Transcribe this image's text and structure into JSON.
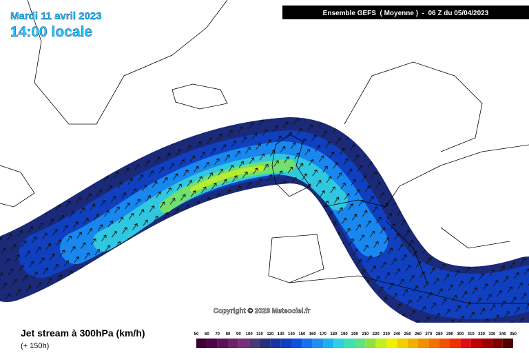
{
  "header": {
    "date": "Mardi 11 avril 2023",
    "time": "14:00 locale",
    "model": "Ensemble GEFS  ( Moyenne )  -  06 Z du 05/04/2023"
  },
  "copyright": "Copyright © 2023 Meteociel.fr",
  "legend": {
    "title": "Jet stream à 300hPa (km/h)",
    "lead": "(+ 150h)",
    "ticks": [
      50,
      60,
      70,
      80,
      90,
      100,
      110,
      120,
      130,
      140,
      150,
      160,
      170,
      180,
      190,
      200,
      210,
      220,
      230,
      240,
      250,
      260,
      270,
      280,
      290,
      300,
      310,
      320,
      330,
      340,
      350
    ],
    "colors": [
      "#3c0030",
      "#4e0048",
      "#5e1058",
      "#6e2068",
      "#7a2c78",
      "#4a3a78",
      "#28307a",
      "#1a34a0",
      "#1040c0",
      "#1050e0",
      "#1870f0",
      "#2090f0",
      "#20b0f0",
      "#30d0e0",
      "#40e0b0",
      "#60e080",
      "#90e040",
      "#c0f020",
      "#f0f000",
      "#f0d000",
      "#f0b000",
      "#f09000",
      "#f07000",
      "#f05000",
      "#f03000",
      "#e01010",
      "#c00000",
      "#a00000",
      "#800000",
      "#500000"
    ]
  }
}
